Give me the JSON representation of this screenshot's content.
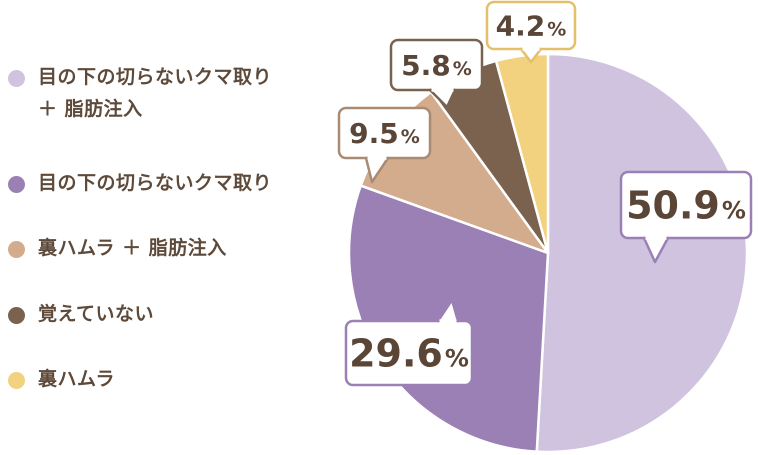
{
  "chart_data": {
    "type": "pie",
    "title": "",
    "categories": [
      "目の下の切らないクマ取り\n＋ 脂肪注入",
      "目の下の切らないクマ取り",
      "裏ハムラ ＋ 脂肪注入",
      "覚えていない",
      "裏ハムラ"
    ],
    "values": [
      50.9,
      29.6,
      9.5,
      5.8,
      4.2
    ],
    "value_labels": [
      "50.9",
      "29.6",
      "9.5",
      "5.8",
      "4.2"
    ],
    "unit": "%",
    "colors": [
      "#d0c3df",
      "#9b80b6",
      "#d3ab8d",
      "#7b624e",
      "#f2d27f"
    ],
    "legend_placement": "left",
    "start_angle_deg": 0,
    "direction": "clockwise"
  }
}
